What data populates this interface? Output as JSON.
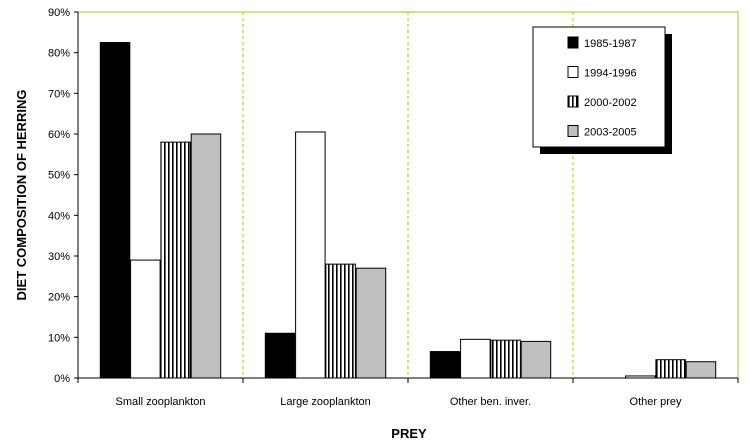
{
  "chart_data": {
    "type": "bar",
    "title": "",
    "xlabel": "PREY",
    "ylabel": "DIET COMPOSITION OF HERRING",
    "ylim": [
      0,
      90
    ],
    "yticks": [
      "0%",
      "10%",
      "20%",
      "30%",
      "40%",
      "50%",
      "60%",
      "70%",
      "80%",
      "90%"
    ],
    "categories": [
      "Small zooplankton",
      "Large zooplankton",
      "Other ben. inver.",
      "Other prey"
    ],
    "series": [
      {
        "name": "1985-1987",
        "values": [
          82.5,
          11,
          6.5,
          0
        ],
        "fill": "solid",
        "color": "#000000"
      },
      {
        "name": "1994-1996",
        "values": [
          29,
          60.5,
          9.5,
          0.5
        ],
        "fill": "open",
        "color": "#ffffff"
      },
      {
        "name": "2000-2002",
        "values": [
          58,
          28,
          9.3,
          4.5
        ],
        "fill": "striped",
        "color": "#ffffff"
      },
      {
        "name": "2003-2005",
        "values": [
          60,
          27,
          9,
          4
        ],
        "fill": "gray",
        "color": "#c0c0c0"
      }
    ],
    "grid": "vertical dashed separators between categories",
    "grid_color": "#99cc00",
    "legend_position": "top-right"
  }
}
